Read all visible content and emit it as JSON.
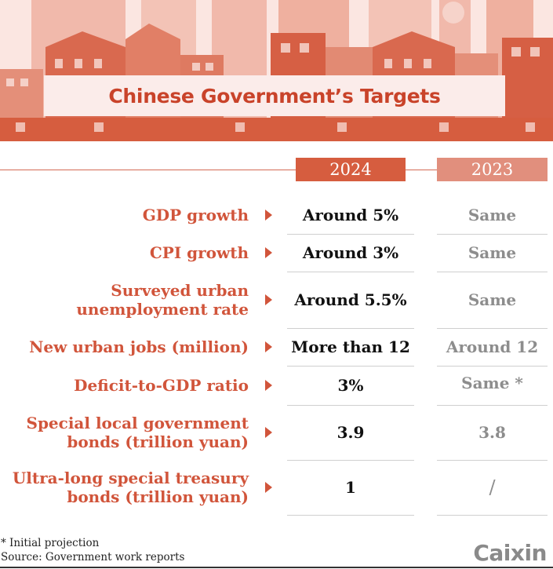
{
  "title": "Chinese Government’s Targets",
  "columns": {
    "year_current": "2024",
    "year_previous": "2023"
  },
  "rows": [
    {
      "label": [
        "GDP growth"
      ],
      "value_2024": "Around 5%",
      "value_2023": "Same"
    },
    {
      "label": [
        "CPI growth"
      ],
      "value_2024": "Around 3%",
      "value_2023": "Same"
    },
    {
      "label": [
        "Surveyed urban",
        "unemployment rate"
      ],
      "value_2024": "Around 5.5%",
      "value_2023": "Same"
    },
    {
      "label": [
        "New urban jobs (million)"
      ],
      "value_2024": "More than 12",
      "value_2023": "Around 12"
    },
    {
      "label": [
        "Deficit-to-GDP ratio"
      ],
      "value_2024": "3%",
      "value_2023": "Same *"
    },
    {
      "label": [
        "Special local government",
        "bonds (trillion yuan)"
      ],
      "value_2024": "3.9",
      "value_2023": "3.8"
    },
    {
      "label": [
        "Ultra-long special treasury",
        "bonds (trillion yuan)"
      ],
      "value_2024": "1",
      "value_2023": "/"
    }
  ],
  "footnotes": {
    "note": "* Initial projection",
    "source": "Source: Government work reports"
  },
  "logo": "Caixin",
  "colors": {
    "accent": "#d1553b",
    "header_2024": "#d65d3f",
    "header_2023": "#e18f7d",
    "banner_dark": "#c9432a"
  }
}
